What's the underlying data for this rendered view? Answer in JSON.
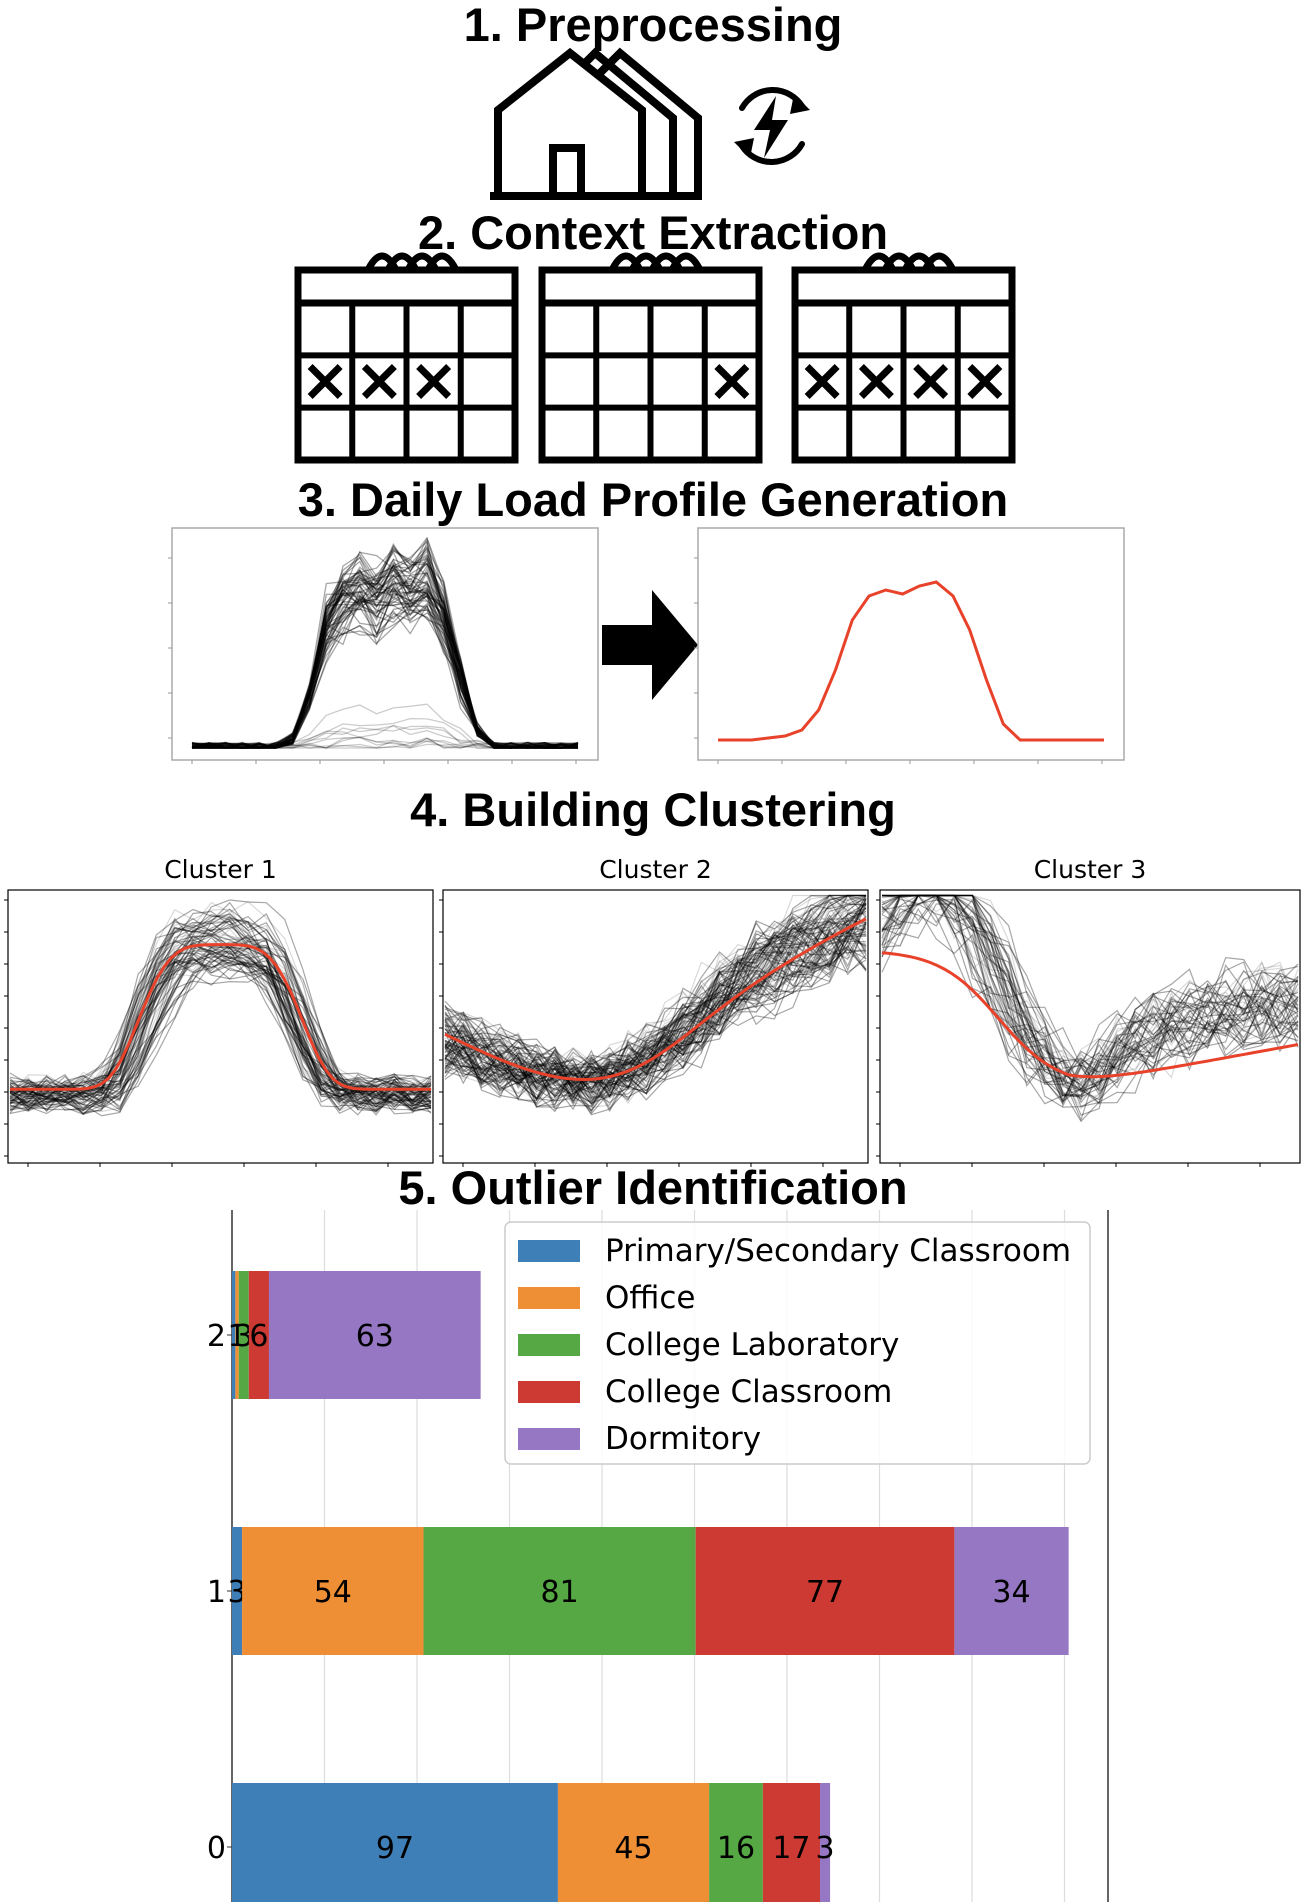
{
  "sections": {
    "s1": "1. Preprocessing",
    "s2": "2. Context Extraction",
    "s3": "3. Daily Load Profile Generation",
    "s4": "4. Building Clustering",
    "s5": "5. Outlier Identification"
  },
  "icons": {
    "buildings": "buildings-icon",
    "energy": "energy-cycle-icon",
    "calendar": "calendar-icon",
    "arrow": "arrow-right-icon"
  },
  "calendars": [
    {
      "marks": [
        1,
        1,
        1,
        0
      ]
    },
    {
      "marks": [
        0,
        0,
        0,
        1
      ]
    },
    {
      "marks": [
        1,
        1,
        1,
        1
      ]
    }
  ],
  "clusters": [
    {
      "title": "Cluster 1"
    },
    {
      "title": "Cluster 2"
    },
    {
      "title": "Cluster 3"
    }
  ],
  "colors": {
    "traces": "#000000",
    "centroid": "#e8422b",
    "Primary/Secondary Classroom": "#3f7fb8",
    "Office": "#ef8f35",
    "College Laboratory": "#55a844",
    "College Classroom": "#cc3a33",
    "Dormitory": "#9677c3"
  },
  "chart_data": {
    "type": "bar",
    "orientation": "horizontal",
    "stacked": true,
    "categories": [
      "0",
      "1",
      "2"
    ],
    "series": [
      {
        "name": "Primary/Secondary Classroom",
        "values": [
          97,
          3,
          1
        ]
      },
      {
        "name": "Office",
        "values": [
          45,
          54,
          1
        ]
      },
      {
        "name": "College Laboratory",
        "values": [
          16,
          81,
          3
        ]
      },
      {
        "name": "College Classroom",
        "values": [
          17,
          77,
          6
        ]
      },
      {
        "name": "Dormitory",
        "values": [
          3,
          34,
          63
        ]
      }
    ],
    "data_labels": {
      "0": [
        "97",
        "45",
        "16",
        "17",
        "3"
      ],
      "1": [
        "3",
        "54",
        "81",
        "77",
        "34"
      ],
      "2": [
        "1",
        "3",
        "6",
        "63"
      ]
    },
    "grid": true,
    "legend": "top-right"
  }
}
